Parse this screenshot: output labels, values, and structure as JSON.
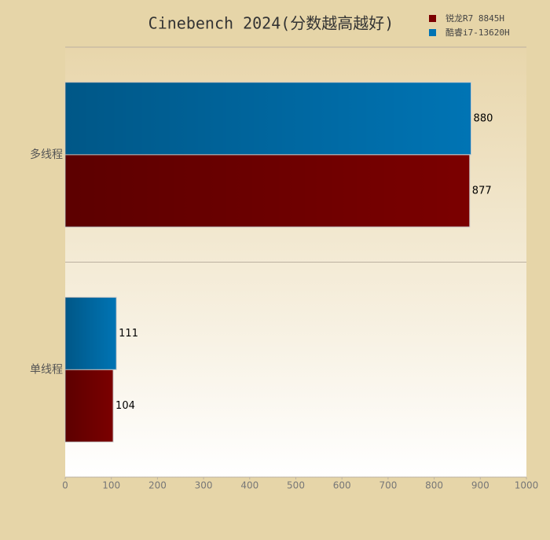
{
  "chart_data": {
    "type": "bar",
    "orientation": "horizontal",
    "title": "Cinebench 2024(分数越高越好)",
    "categories": [
      "多线程",
      "单线程"
    ],
    "series": [
      {
        "name": "锐龙R7 8845H",
        "color": "#7b0000",
        "values": [
          877,
          104
        ]
      },
      {
        "name": "酷睿i7-13620H",
        "color": "#0074b4",
        "values": [
          880,
          111
        ]
      }
    ],
    "xlim": [
      0,
      1000
    ],
    "xticks": [
      0,
      100,
      200,
      300,
      400,
      500,
      600,
      700,
      800,
      900,
      1000
    ],
    "legend": "top-right"
  }
}
